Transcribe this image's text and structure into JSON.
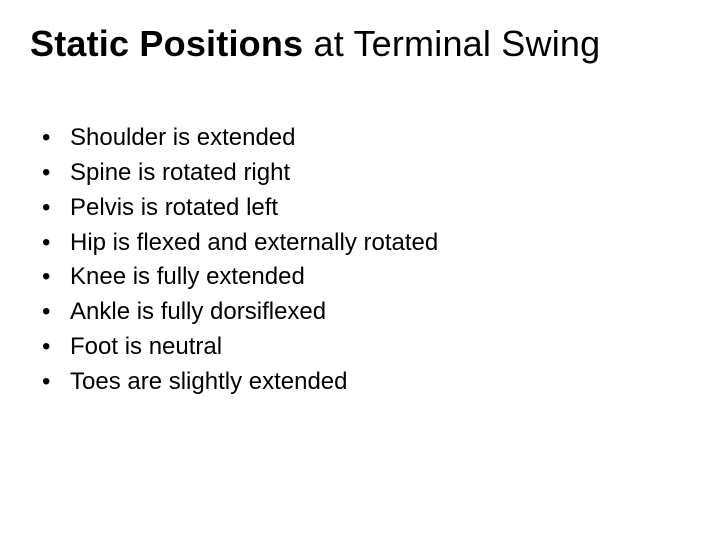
{
  "title": {
    "bold": "Static Positions",
    "normal": " at Terminal Swing"
  },
  "bullets": [
    "Shoulder is extended",
    "Spine is rotated right",
    "Pelvis is rotated left",
    "Hip is flexed and externally rotated",
    "Knee is fully extended",
    "Ankle is fully dorsiflexed",
    "Foot is neutral",
    "Toes are slightly extended"
  ],
  "colors": {
    "background": "#ffffff",
    "text": "#000000"
  },
  "typography": {
    "title_fontsize": 36,
    "body_fontsize": 24,
    "font_family": "Arial"
  }
}
